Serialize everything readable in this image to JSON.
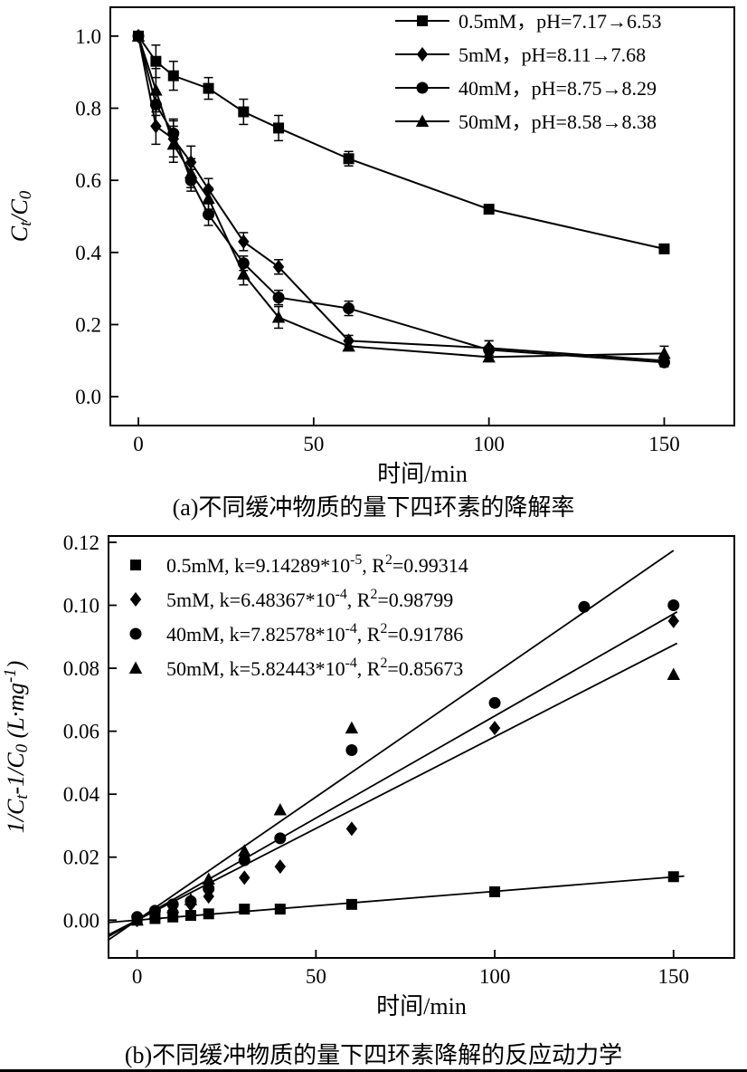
{
  "figure": {
    "captions": {
      "a": "(a)不同缓冲物质的量下四环素的降解率",
      "b": "(b)不同缓冲物质的量下四环素降解的反应动力学"
    }
  },
  "chart_data": [
    {
      "id": "a",
      "type": "line",
      "title": "",
      "xlabel": "时间/min",
      "ylabel": "C_{t}/C_{0}",
      "xlim": [
        -8,
        170
      ],
      "ylim": [
        -0.08,
        1.08
      ],
      "xticks": [
        0,
        50,
        100,
        150
      ],
      "yticks": [
        0.0,
        0.2,
        0.4,
        0.6,
        0.8,
        1.0
      ],
      "xtick_decimals": 0,
      "ytick_decimals": 1,
      "grid": false,
      "legend_position": "top-right",
      "series": [
        {
          "name": "0.5mM，pH=7.17→6.53",
          "marker": "square",
          "line": true,
          "x": [
            0,
            5,
            10,
            20,
            30,
            40,
            60,
            100,
            150
          ],
          "y": [
            1.0,
            0.93,
            0.89,
            0.855,
            0.79,
            0.745,
            0.66,
            0.52,
            0.41
          ],
          "yerr": [
            0.012,
            0.045,
            0.04,
            0.03,
            0.035,
            0.035,
            0.02,
            0.012,
            0.012
          ]
        },
        {
          "name": "5mM，pH=8.11→7.68",
          "marker": "diamond",
          "line": true,
          "x": [
            0,
            5,
            10,
            15,
            20,
            30,
            40,
            60,
            100,
            150
          ],
          "y": [
            1.0,
            0.75,
            0.715,
            0.65,
            0.575,
            0.43,
            0.36,
            0.155,
            0.135,
            0.1
          ],
          "yerr": [
            0.012,
            0.05,
            0.05,
            0.045,
            0.03,
            0.025,
            0.02,
            0.015,
            0.02,
            0.012
          ]
        },
        {
          "name": "40mM，pH=8.75→8.29",
          "marker": "circle",
          "line": true,
          "x": [
            0,
            5,
            10,
            15,
            20,
            30,
            40,
            60,
            100,
            150
          ],
          "y": [
            1.0,
            0.81,
            0.73,
            0.6,
            0.505,
            0.37,
            0.275,
            0.245,
            0.13,
            0.095
          ],
          "yerr": [
            0.012,
            0.03,
            0.04,
            0.03,
            0.03,
            0.02,
            0.02,
            0.02,
            0.025,
            0.012
          ]
        },
        {
          "name": "50mM，pH=8.58→8.38",
          "marker": "triangle",
          "line": true,
          "x": [
            0,
            5,
            10,
            15,
            20,
            30,
            40,
            60,
            100,
            150
          ],
          "y": [
            1.0,
            0.85,
            0.7,
            0.62,
            0.55,
            0.34,
            0.22,
            0.14,
            0.11,
            0.12
          ],
          "yerr": [
            0.012,
            0.06,
            0.05,
            0.04,
            0.03,
            0.03,
            0.03,
            0.012,
            0.012,
            0.02
          ]
        }
      ]
    },
    {
      "id": "b",
      "type": "scatter",
      "title": "",
      "xlabel": "时间/min",
      "ylabel": "1/C_{t}-1/C_{0} (L·mg^{-1})",
      "xlim": [
        -8,
        167
      ],
      "ylim": [
        -0.012,
        0.122
      ],
      "xticks": [
        0,
        50,
        100,
        150
      ],
      "yticks": [
        0.0,
        0.02,
        0.04,
        0.06,
        0.08,
        0.1,
        0.12
      ],
      "xtick_decimals": 0,
      "ytick_decimals": 2,
      "grid": false,
      "legend_position": "top-left",
      "series": [
        {
          "name": "0.5mM, k=9.14289*10^{-5}, R^{2}=0.99314",
          "marker": "square",
          "line": false,
          "x": [
            0,
            5,
            10,
            15,
            20,
            30,
            40,
            60,
            100,
            150
          ],
          "y": [
            0.0,
            0.0005,
            0.001,
            0.0015,
            0.002,
            0.0035,
            0.0035,
            0.005,
            0.009,
            0.0138
          ],
          "fit": {
            "slope": 9.14289e-05,
            "intercept": 0,
            "x_range": [
              -8,
              153
            ]
          }
        },
        {
          "name": "5mM, k=6.48367*10^{-4}, R^{2}=0.98799",
          "marker": "diamond",
          "line": false,
          "x": [
            0,
            5,
            10,
            15,
            20,
            30,
            40,
            60,
            100,
            150
          ],
          "y": [
            0.0,
            0.0015,
            0.003,
            0.005,
            0.0075,
            0.0135,
            0.017,
            0.029,
            0.061,
            0.095
          ],
          "fit": {
            "slope": 0.000648367,
            "intercept": 0,
            "x_range": [
              -8,
              151
            ]
          }
        },
        {
          "name": "40mM, k=7.82578*10^{-4}, R^{2}=0.91786",
          "marker": "circle",
          "line": false,
          "x": [
            0,
            5,
            10,
            15,
            20,
            30,
            40,
            60,
            100,
            125,
            150
          ],
          "y": [
            0.001,
            0.003,
            0.005,
            0.006,
            0.01,
            0.019,
            0.026,
            0.054,
            0.069,
            0.0995,
            0.1
          ],
          "fit": {
            "slope": 0.000782578,
            "intercept": 0,
            "x_range": [
              -8,
              150
            ]
          }
        },
        {
          "name": "50mM, k=5.82443*10^{-4}, R^{2}=0.85673",
          "marker": "triangle",
          "line": false,
          "x": [
            0,
            5,
            10,
            15,
            20,
            30,
            40,
            60,
            150
          ],
          "y": [
            0.0,
            0.002,
            0.004,
            0.0065,
            0.013,
            0.022,
            0.035,
            0.061,
            0.078
          ],
          "fit": {
            "slope": 0.000582443,
            "intercept": 0,
            "x_range": [
              -8,
              151
            ]
          }
        }
      ]
    }
  ]
}
